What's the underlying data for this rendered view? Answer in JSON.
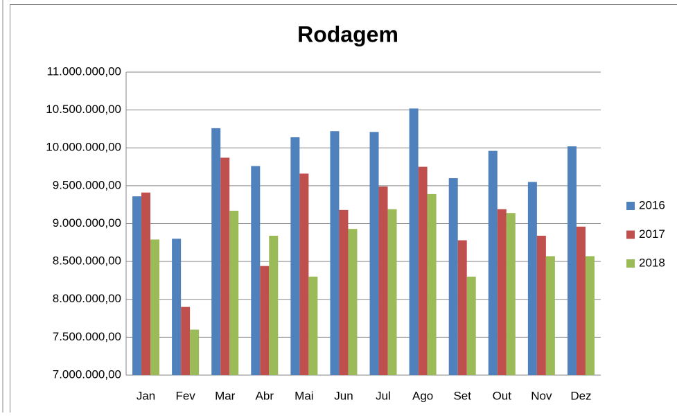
{
  "chart_data": {
    "type": "bar",
    "title": "Rodagem",
    "categories": [
      "Jan",
      "Fev",
      "Mar",
      "Abr",
      "Mai",
      "Jun",
      "Jul",
      "Ago",
      "Set",
      "Out",
      "Nov",
      "Dez"
    ],
    "series": [
      {
        "name": "2016",
        "color": "#4f81bd",
        "values": [
          9360000,
          8800000,
          10260000,
          9760000,
          10140000,
          10220000,
          10210000,
          10520000,
          9600000,
          9960000,
          9550000,
          10020000
        ]
      },
      {
        "name": "2017",
        "color": "#c0504d",
        "values": [
          9410000,
          7900000,
          9870000,
          8440000,
          9660000,
          9180000,
          9490000,
          9750000,
          8780000,
          9190000,
          8840000,
          8960000
        ]
      },
      {
        "name": "2018",
        "color": "#9bbb59",
        "values": [
          8790000,
          7600000,
          9170000,
          8840000,
          8300000,
          8930000,
          9190000,
          9390000,
          8300000,
          9140000,
          8570000,
          8570000
        ]
      }
    ],
    "ylim": [
      7000000,
      11000000
    ],
    "yticks": [
      {
        "value": 7000000,
        "label": "7.000.000,00"
      },
      {
        "value": 7500000,
        "label": "7.500.000,00"
      },
      {
        "value": 8000000,
        "label": "8.000.000,00"
      },
      {
        "value": 8500000,
        "label": "8.500.000,00"
      },
      {
        "value": 9000000,
        "label": "9.000.000,00"
      },
      {
        "value": 9500000,
        "label": "9.500.000,00"
      },
      {
        "value": 10000000,
        "label": "10.000.000,00"
      },
      {
        "value": 10500000,
        "label": "10.500.000,00"
      },
      {
        "value": 11000000,
        "label": "11.000.000,00"
      }
    ],
    "grid": true,
    "legend": "right"
  }
}
